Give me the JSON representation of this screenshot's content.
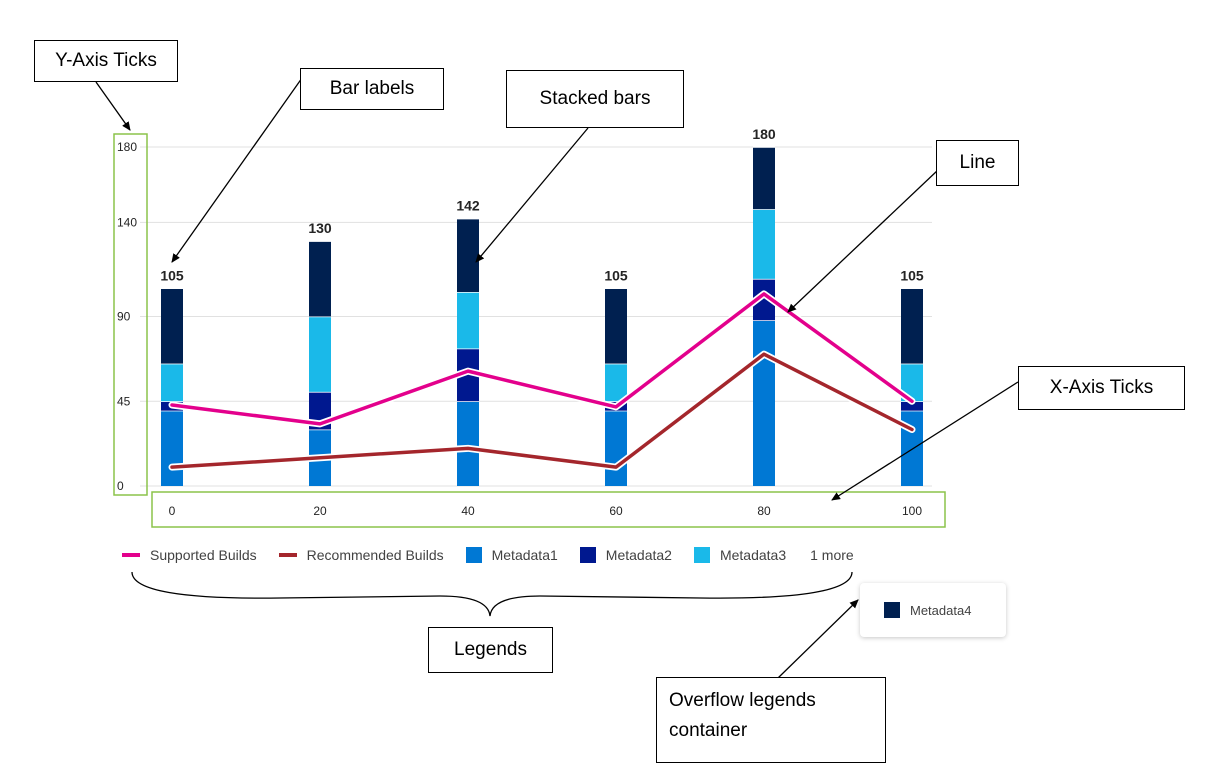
{
  "chart_data": {
    "type": "bar",
    "stacked": true,
    "x": [
      0,
      20,
      40,
      60,
      80,
      100
    ],
    "series": [
      {
        "name": "Metadata1",
        "type": "bar",
        "color": "#0078d4",
        "values": [
          40,
          30,
          45,
          40,
          88,
          40
        ]
      },
      {
        "name": "Metadata2",
        "type": "bar",
        "color": "#00188f",
        "values": [
          5,
          20,
          28,
          5,
          22,
          5
        ]
      },
      {
        "name": "Metadata3",
        "type": "bar",
        "color": "#1ab9e9",
        "values": [
          20,
          40,
          30,
          20,
          37,
          20
        ]
      },
      {
        "name": "Metadata4",
        "type": "bar",
        "color": "#002050",
        "values": [
          40,
          40,
          39,
          40,
          33,
          40
        ]
      },
      {
        "name": "Supported Builds",
        "type": "line",
        "color": "#e3008c",
        "values": [
          43,
          33,
          61,
          42,
          102,
          45
        ]
      },
      {
        "name": "Recommended Builds",
        "type": "line",
        "color": "#a4262c",
        "values": [
          10,
          15,
          20,
          10,
          70,
          30
        ]
      }
    ],
    "bar_labels": [
      "105",
      "130",
      "142",
      "105",
      "180",
      "105"
    ],
    "yticks": [
      0,
      45,
      90,
      140,
      180
    ],
    "xticks": [
      0,
      20,
      40,
      60,
      80,
      100
    ],
    "ylim": [
      0,
      180
    ],
    "xlim": [
      0,
      100
    ],
    "grid": true,
    "legend_position": "bottom"
  },
  "legend": {
    "items": [
      {
        "label": "Supported Builds",
        "kind": "line",
        "color": "#e3008c"
      },
      {
        "label": "Recommended Builds",
        "kind": "line",
        "color": "#a4262c"
      },
      {
        "label": "Metadata1",
        "kind": "rect",
        "color": "#0078d4"
      },
      {
        "label": "Metadata2",
        "kind": "rect",
        "color": "#00188f"
      },
      {
        "label": "Metadata3",
        "kind": "rect",
        "color": "#1ab9e9"
      }
    ],
    "more_label": "1 more",
    "overflow_items": [
      {
        "label": "Metadata4",
        "kind": "rect",
        "color": "#002050"
      }
    ]
  },
  "annotations": {
    "y_axis_ticks": "Y-Axis Ticks",
    "bar_labels": "Bar labels",
    "stacked_bars": "Stacked bars",
    "line": "Line",
    "x_axis_ticks": "X-Axis Ticks",
    "legends": "Legends",
    "overflow_line1": "Overflow legends",
    "overflow_line2": "container"
  },
  "colors": {
    "gridline": "#e1e1e1",
    "highlight_box": "#8bc34a"
  }
}
